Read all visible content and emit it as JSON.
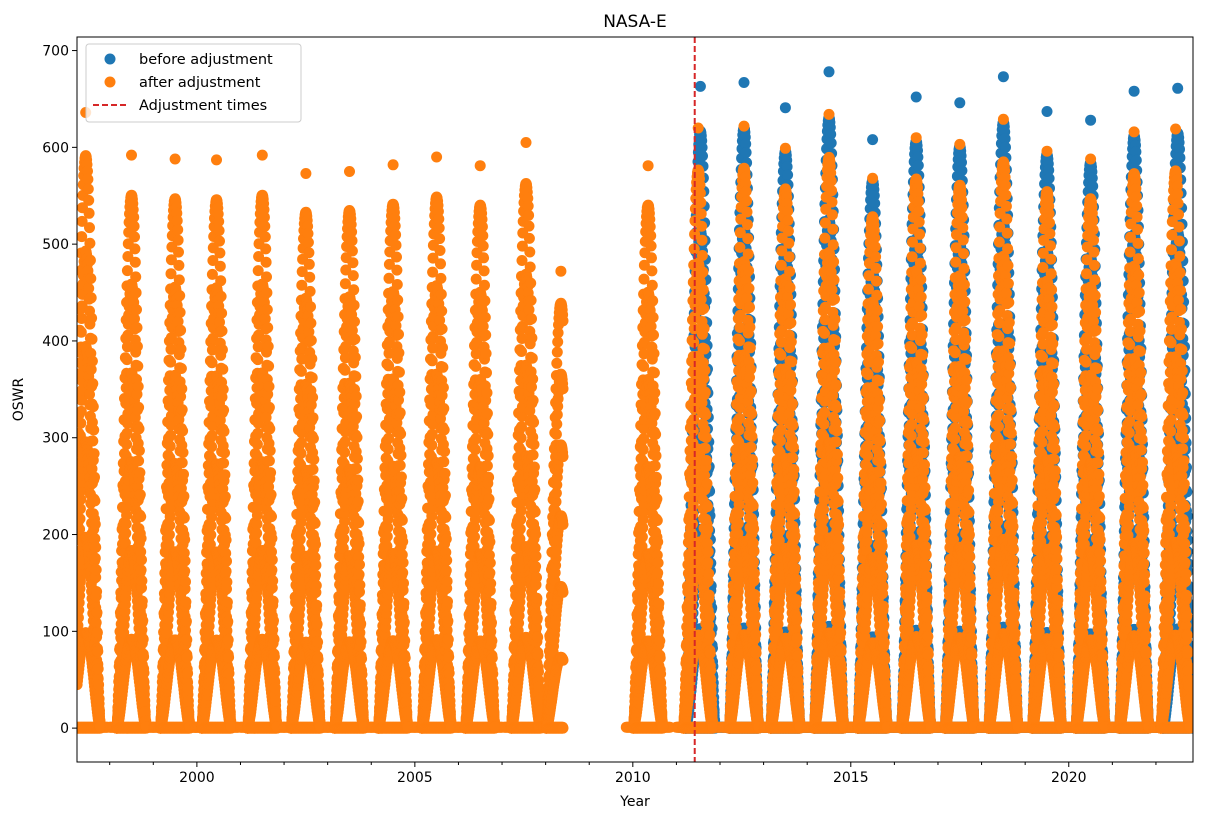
{
  "chart_data": {
    "type": "scatter",
    "title": "NASA-E",
    "xlabel": "Year",
    "ylabel": "OSWR",
    "xlim": [
      1997.25,
      2022.85
    ],
    "ylim": [
      -35,
      714
    ],
    "x_ticks": [
      2000,
      2005,
      2010,
      2015,
      2020
    ],
    "y_ticks": [
      0,
      100,
      200,
      300,
      400,
      500,
      600,
      700
    ],
    "grid": false,
    "legend_placement": "upper-left",
    "data_gap": [
      2008.4,
      2009.8
    ],
    "series": [
      {
        "name": "before adjustment",
        "marker": "circle",
        "color": "#1f77b4",
        "annual_peaks": [
          {
            "year_center": 2011.55,
            "peak": 663
          },
          {
            "year_center": 2012.55,
            "peak": 667
          },
          {
            "year_center": 2013.5,
            "peak": 641
          },
          {
            "year_center": 2014.5,
            "peak": 678
          },
          {
            "year_center": 2015.5,
            "peak": 608
          },
          {
            "year_center": 2016.5,
            "peak": 652
          },
          {
            "year_center": 2017.5,
            "peak": 646
          },
          {
            "year_center": 2018.5,
            "peak": 673
          },
          {
            "year_center": 2019.5,
            "peak": 637
          },
          {
            "year_center": 2020.5,
            "peak": 628
          },
          {
            "year_center": 2021.5,
            "peak": 658
          },
          {
            "year_center": 2022.5,
            "peak": 661
          }
        ]
      },
      {
        "name": "after adjustment",
        "marker": "circle",
        "color": "#ff7f0e",
        "annual_peaks": [
          {
            "year_center": 1997.45,
            "peak": 636
          },
          {
            "year_center": 1998.5,
            "peak": 592
          },
          {
            "year_center": 1999.5,
            "peak": 588
          },
          {
            "year_center": 2000.45,
            "peak": 587
          },
          {
            "year_center": 2001.5,
            "peak": 592
          },
          {
            "year_center": 2002.5,
            "peak": 573
          },
          {
            "year_center": 2003.5,
            "peak": 575
          },
          {
            "year_center": 2004.5,
            "peak": 582
          },
          {
            "year_center": 2005.5,
            "peak": 590
          },
          {
            "year_center": 2006.5,
            "peak": 581
          },
          {
            "year_center": 2007.55,
            "peak": 605
          },
          {
            "year_center": 2008.35,
            "peak": 472
          },
          {
            "year_center": 2010.35,
            "peak": 581
          },
          {
            "year_center": 2011.5,
            "peak": 620
          },
          {
            "year_center": 2012.55,
            "peak": 622
          },
          {
            "year_center": 2013.5,
            "peak": 599
          },
          {
            "year_center": 2014.5,
            "peak": 634
          },
          {
            "year_center": 2015.5,
            "peak": 568
          },
          {
            "year_center": 2016.5,
            "peak": 610
          },
          {
            "year_center": 2017.5,
            "peak": 603
          },
          {
            "year_center": 2018.5,
            "peak": 629
          },
          {
            "year_center": 2019.5,
            "peak": 596
          },
          {
            "year_center": 2020.5,
            "peak": 588
          },
          {
            "year_center": 2021.5,
            "peak": 616
          },
          {
            "year_center": 2022.45,
            "peak": 619
          }
        ]
      }
    ],
    "vlines": [
      {
        "name": "Adjustment times",
        "x": 2011.42,
        "color": "#d62728",
        "style": "dashed"
      }
    ]
  }
}
